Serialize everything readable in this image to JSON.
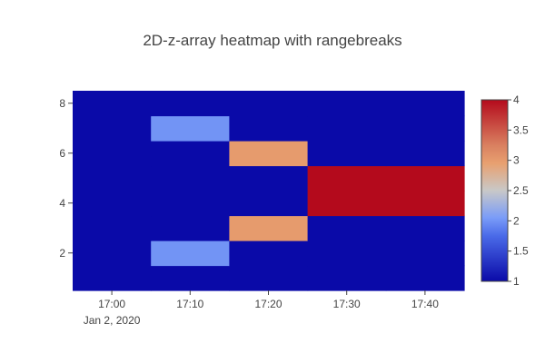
{
  "chart_data": {
    "type": "heatmap",
    "title": "2D-z-array heatmap with rangebreaks",
    "xlabel": "",
    "ylabel": "",
    "x_ticks": [
      "17:00",
      "17:10",
      "17:20",
      "17:30",
      "17:40"
    ],
    "x_tick_sublabel": "Jan 2, 2020",
    "x_columns": [
      "16:55–17:05",
      "17:05–17:15",
      "17:15–17:25",
      "17:25–17:35",
      "17:35–17:45"
    ],
    "y_ticks": [
      2,
      4,
      6,
      8
    ],
    "ylim": [
      0.5,
      8.5
    ],
    "y_rows": [
      1,
      2,
      3,
      4,
      5,
      6,
      7,
      8
    ],
    "z": [
      [
        1,
        1,
        1,
        1,
        1
      ],
      [
        1,
        2,
        1,
        1,
        1
      ],
      [
        1,
        1,
        3,
        1,
        1
      ],
      [
        1,
        1,
        1,
        4,
        4
      ],
      [
        1,
        1,
        1,
        4,
        4
      ],
      [
        1,
        1,
        3,
        1,
        1
      ],
      [
        1,
        2,
        1,
        1,
        1
      ],
      [
        1,
        1,
        1,
        1,
        1
      ]
    ],
    "colorscale": {
      "name": "coolwarm",
      "zmin": 1,
      "zmax": 4,
      "stops": [
        [
          0.0,
          "#0a0aa8"
        ],
        [
          0.25,
          "#4a6ae8"
        ],
        [
          0.35,
          "#7a9cf8"
        ],
        [
          0.5,
          "#c8c8c8"
        ],
        [
          0.65,
          "#e8a070"
        ],
        [
          0.75,
          "#d98060"
        ],
        [
          1.0,
          "#b40a1c"
        ]
      ],
      "ticks": [
        "1",
        "1.5",
        "2",
        "2.5",
        "3",
        "3.5",
        "4"
      ]
    }
  }
}
